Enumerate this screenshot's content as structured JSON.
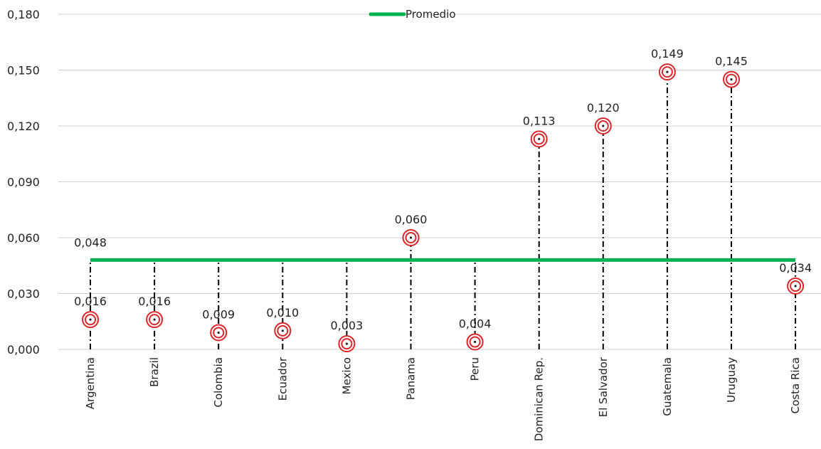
{
  "chart_data": {
    "type": "scatter",
    "title": "",
    "xlabel": "",
    "ylabel": "",
    "categories": [
      "Argentina",
      "Brazil",
      "Colombia",
      "Ecuador",
      "Mexico",
      "Panama",
      "Peru",
      "Dominican Rep.",
      "El Salvador",
      "Guatemala",
      "Uruguay",
      "Costa Rica"
    ],
    "values": [
      0.016,
      0.016,
      0.009,
      0.01,
      0.003,
      0.06,
      0.004,
      0.113,
      0.12,
      0.149,
      0.145,
      0.034
    ],
    "value_labels": [
      "0,016",
      "0,016",
      "0,009",
      "0,010",
      "0,003",
      "0,060",
      "0,004",
      "0,113",
      "0,120",
      "0,149",
      "0,145",
      "0,034"
    ],
    "average": {
      "name": "Promedio",
      "value": 0.048,
      "label": "0,048",
      "color": "#00b050"
    },
    "ylim": [
      0,
      0.18
    ],
    "yticks": [
      0,
      0.03,
      0.06,
      0.09,
      0.12,
      0.15,
      0.18
    ],
    "ytick_labels": [
      "0,000",
      "0,030",
      "0,060",
      "0,090",
      "0,120",
      "0,150",
      "0,180"
    ],
    "grid": true,
    "legend_position": "top-center",
    "marker_color": "#d9262b",
    "stem_color": "#000000"
  }
}
